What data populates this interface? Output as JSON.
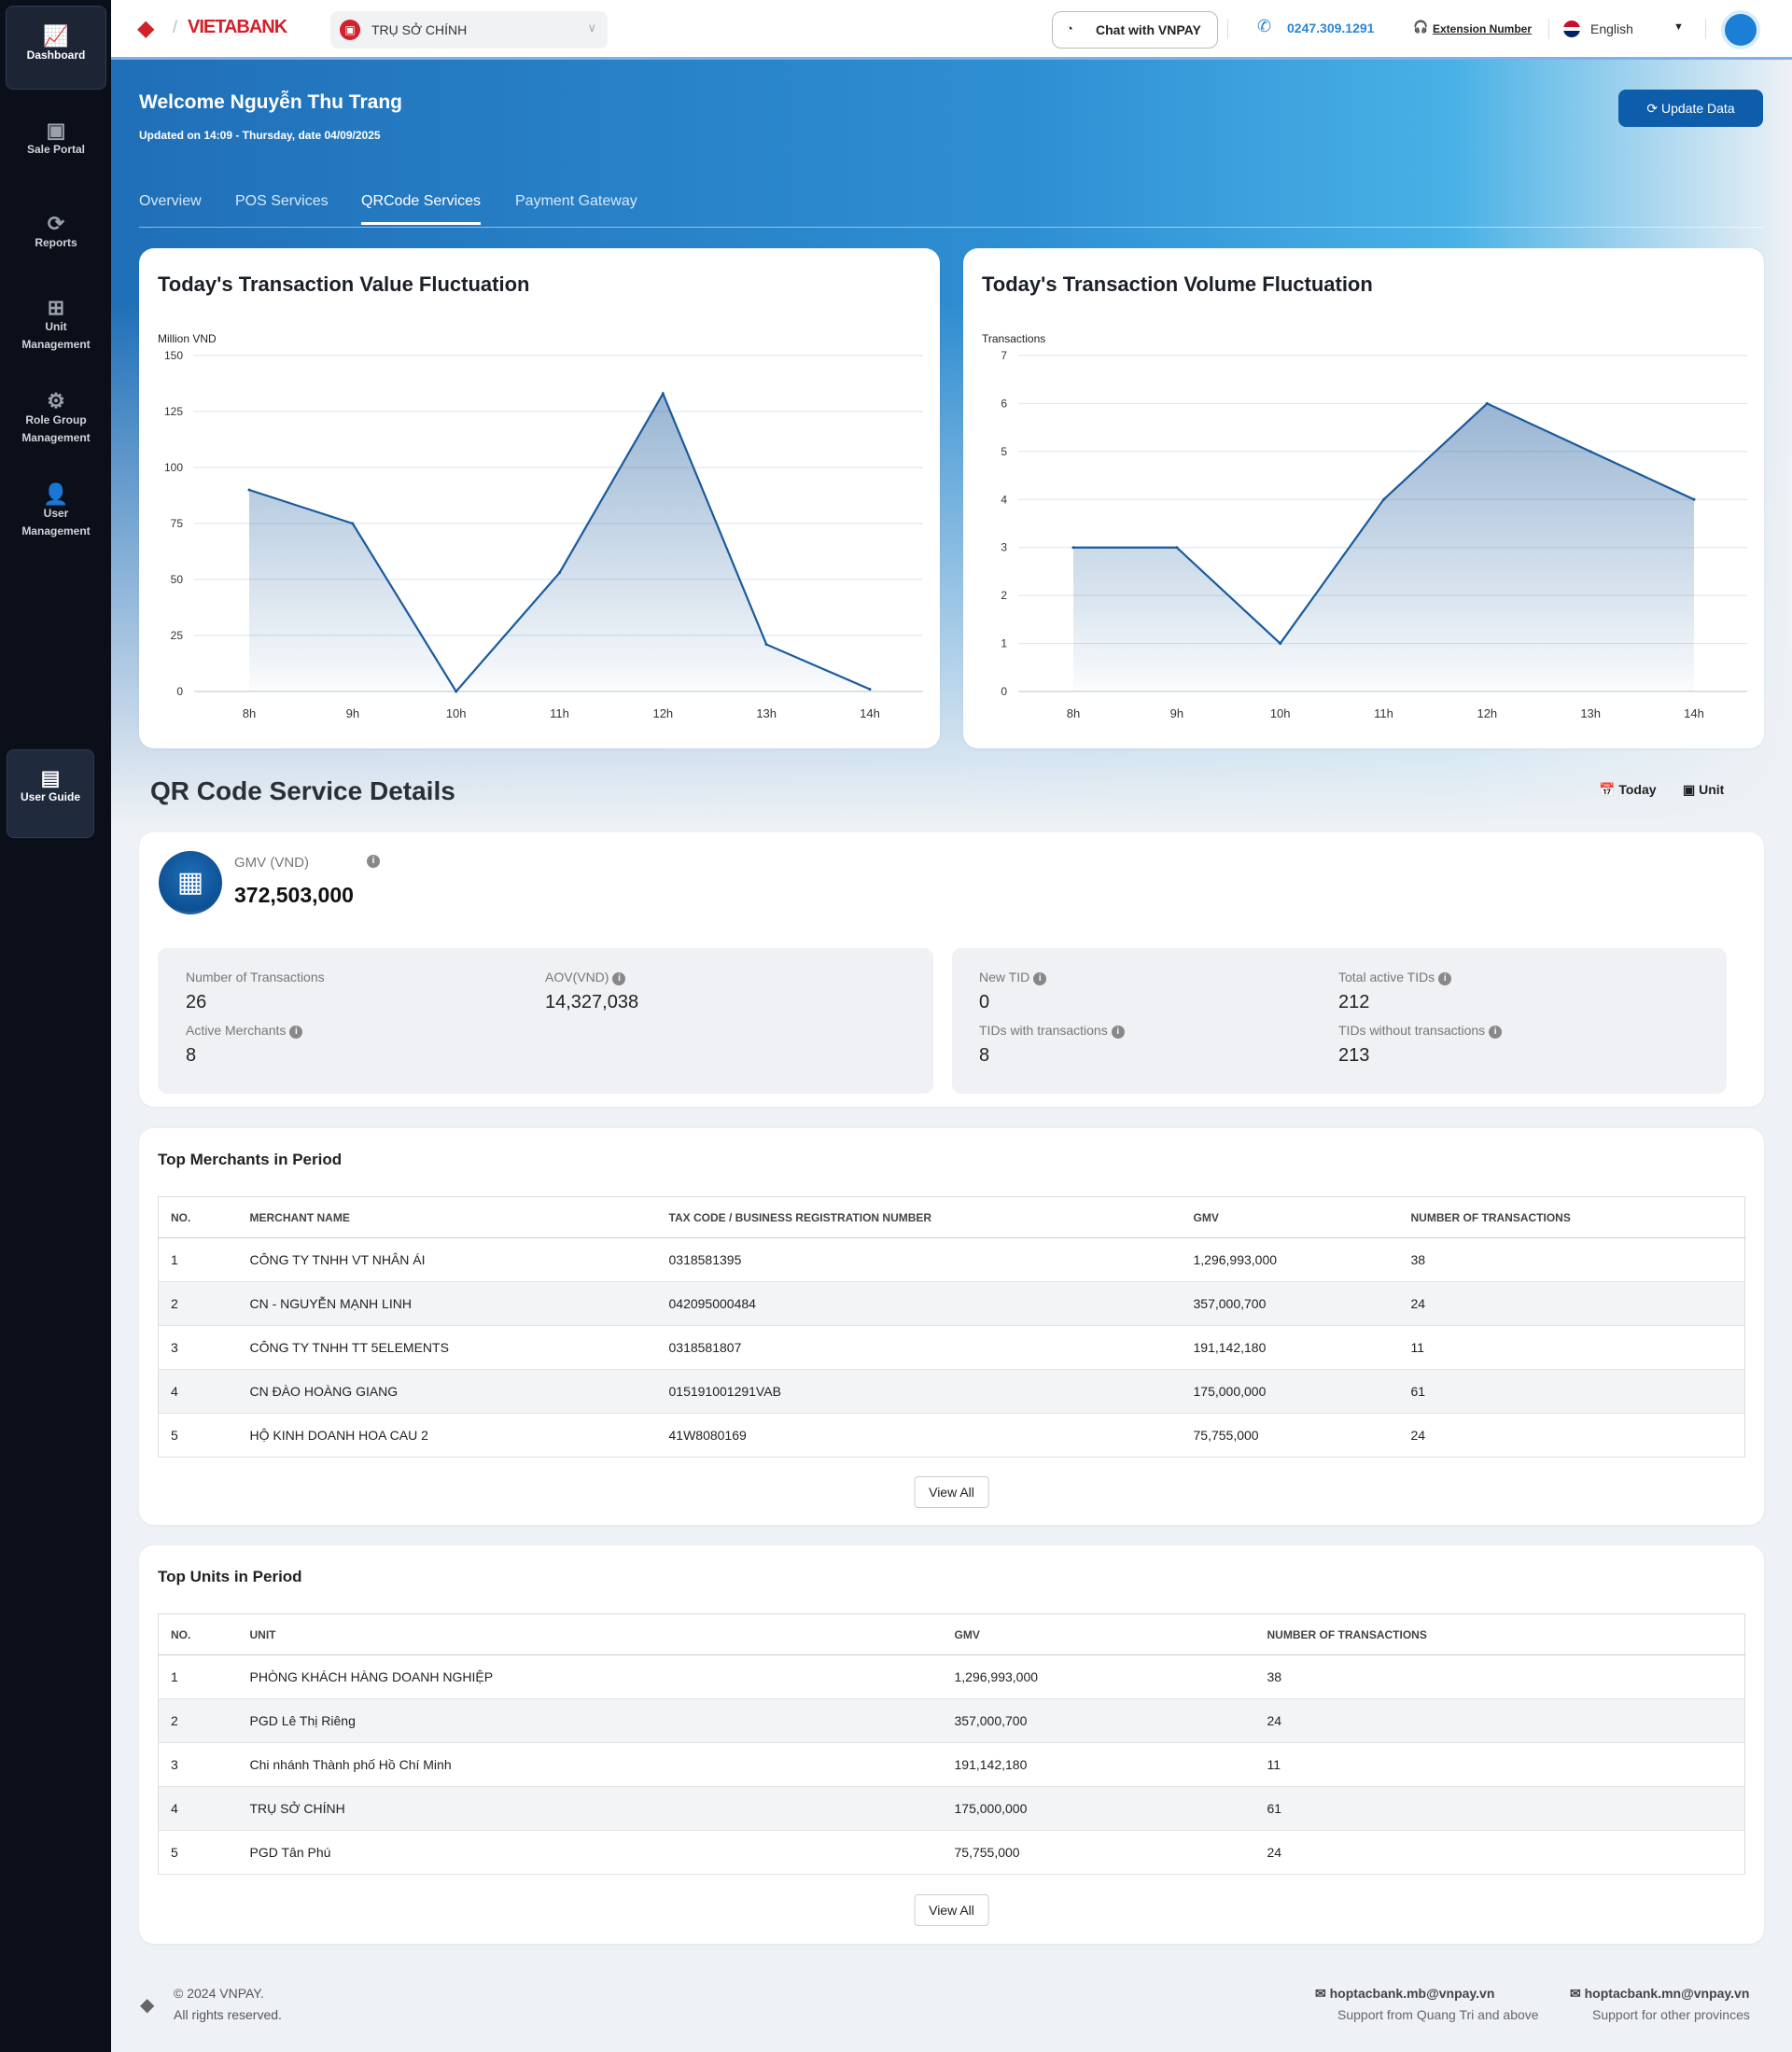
{
  "sidebar": {
    "items": [
      {
        "label": "Dashboard",
        "icon": "chart-line-icon",
        "active": true
      },
      {
        "label": "Sale Portal",
        "icon": "briefcase-icon"
      },
      {
        "label": "Reports",
        "icon": "refresh-icon"
      },
      {
        "label": "Unit Management",
        "icon": "hierarchy-icon"
      },
      {
        "label": "Role Group Management",
        "icon": "role-icon"
      },
      {
        "label": "User Management",
        "icon": "user-gear-icon"
      }
    ],
    "guide": {
      "label": "User Guide",
      "icon": "book-icon"
    }
  },
  "header": {
    "brand": "VIETABANK",
    "unit_select": "TRỤ SỞ CHÍNH",
    "chat": "Chat with VNPAY",
    "phone": "0247.309.1291",
    "extension": "Extension Number",
    "language": "English"
  },
  "hero": {
    "welcome": "Welcome Nguyễn Thu Trang",
    "updated": "Updated on 14:09 - Thursday, date 04/09/2025",
    "update_button": "Update Data",
    "tabs": [
      "Overview",
      "POS Services",
      "QRCode Services",
      "Payment Gateway"
    ],
    "active_tab": 2
  },
  "chart_data": [
    {
      "type": "area",
      "title": "Today's Transaction Value Fluctuation",
      "ylabel": "Million VND",
      "categories": [
        "8h",
        "9h",
        "10h",
        "11h",
        "12h",
        "13h",
        "14h"
      ],
      "values": [
        90,
        75,
        0,
        53,
        133,
        21,
        1
      ],
      "yticks": [
        0,
        25,
        50,
        75,
        100,
        125,
        150
      ],
      "ylim": [
        0,
        150
      ],
      "grid": true,
      "color": "#1a5a9c"
    },
    {
      "type": "area",
      "title": "Today's Transaction Volume Fluctuation",
      "ylabel": "Transactions",
      "categories": [
        "8h",
        "9h",
        "10h",
        "11h",
        "12h",
        "13h",
        "14h"
      ],
      "values": [
        3,
        3,
        1,
        4,
        6,
        5,
        4
      ],
      "yticks": [
        0,
        1,
        2,
        3,
        4,
        5,
        6,
        7
      ],
      "ylim": [
        0,
        7
      ],
      "grid": true,
      "color": "#1a5a9c"
    }
  ],
  "details": {
    "title": "QR Code Service Details",
    "filter_today": "Today",
    "filter_unit": "Unit",
    "gmv_label": "GMV (VND)",
    "gmv_value": "372,503,000",
    "stats": {
      "num_tx_label": "Number of Transactions",
      "num_tx": "26",
      "aov_label": "AOV(VND)",
      "aov": "14,327,038",
      "active_merchants_label": "Active Merchants",
      "active_merchants": "8",
      "new_tid_label": "New TID",
      "new_tid": "0",
      "total_active_label": "Total active TIDs",
      "total_active": "212",
      "tids_with_label": "TIDs with transactions",
      "tids_with": "8",
      "tids_without_label": "TIDs without transactions",
      "tids_without": "213"
    }
  },
  "merchants": {
    "title": "Top Merchants in Period",
    "columns": [
      "NO.",
      "MERCHANT NAME",
      "TAX CODE / BUSINESS REGISTRATION NUMBER",
      "GMV",
      "NUMBER OF TRANSACTIONS"
    ],
    "rows": [
      [
        "1",
        "CÔNG TY TNHH VT NHÂN ÁI",
        "0318581395",
        "1,296,993,000",
        "38"
      ],
      [
        "2",
        "CN - NGUYỄN MẠNH LINH",
        "042095000484",
        "357,000,700",
        "24"
      ],
      [
        "3",
        "CÔNG TY TNHH TT 5ELEMENTS",
        "0318581807",
        "191,142,180",
        "11"
      ],
      [
        "4",
        "CN ĐÀO HOÀNG GIANG",
        "015191001291VAB",
        "175,000,000",
        "61"
      ],
      [
        "5",
        "HỘ KINH DOANH HOA CAU 2",
        "41W8080169",
        "75,755,000",
        "24"
      ]
    ],
    "view_all": "View All"
  },
  "units": {
    "title": "Top Units in Period",
    "columns": [
      "NO.",
      "UNIT",
      "GMV",
      "NUMBER OF TRANSACTIONS"
    ],
    "rows": [
      [
        "1",
        "PHÒNG KHÁCH HÀNG DOANH NGHIỆP",
        "1,296,993,000",
        "38"
      ],
      [
        "2",
        "PGD Lê Thị Riêng",
        "357,000,700",
        "24"
      ],
      [
        "3",
        "Chi nhánh Thành phố Hồ Chí Minh",
        "191,142,180",
        "11"
      ],
      [
        "4",
        "TRỤ SỞ CHÍNH",
        "175,000,000",
        "61"
      ],
      [
        "5",
        "PGD Tân Phú",
        "75,755,000",
        "24"
      ]
    ],
    "view_all": "View All"
  },
  "footer": {
    "copyright": "© 2024 VNPAY.",
    "rights": "All rights reserved.",
    "email1": "hoptacbank.mb@vnpay.vn",
    "email1_note": "Support from Quang Tri and above",
    "email2": "hoptacbank.mn@vnpay.vn",
    "email2_note": "Support for other provinces"
  }
}
